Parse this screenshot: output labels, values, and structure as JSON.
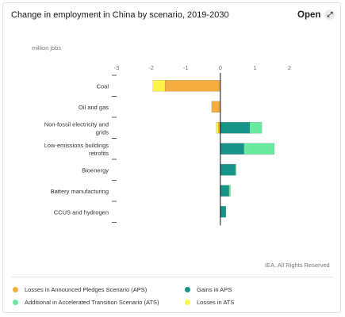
{
  "header": {
    "title": "Change in employment in China by scenario, 2019-2030",
    "open_label": "Open",
    "open_icon": "expand-arrow-icon"
  },
  "unit_label": "million jobs",
  "footer": {
    "rights": "IEA. All Rights Reserved"
  },
  "colors": {
    "losses_aps": "#f5ad3f",
    "gains_aps": "#169487",
    "additional_ats": "#6ae9a0",
    "losses_ats": "#fff347"
  },
  "chart_data": {
    "type": "bar",
    "orientation": "horizontal",
    "stacked": true,
    "title": "Change in employment in China by scenario, 2019-2030",
    "xlabel": "million jobs",
    "xlim": [
      -3,
      2
    ],
    "xticks": [
      "-3",
      "-2",
      "-1",
      "0",
      "1",
      "2"
    ],
    "grid": false,
    "legend_position": "bottom",
    "categories": [
      "Coal",
      "Oil and gas",
      "Non-fossil electricity and grids",
      "Low-emissions buildings retrofits",
      "Bioenergy",
      "Battery manufacturing",
      "CCUS and hydrogen"
    ],
    "category_lines": [
      [
        "Coal"
      ],
      [
        "Oil and gas"
      ],
      [
        "Non-fossil electricity and",
        "grids"
      ],
      [
        "Low-emissions buildings",
        "retrofits"
      ],
      [
        "Bioenergy"
      ],
      [
        "Battery manufacturing"
      ],
      [
        "CCUS and hydrogen"
      ]
    ],
    "series": [
      {
        "name": "Losses in Announced Pledges Scenario (APS)",
        "color": "#f5ad3f",
        "values": [
          -1.6,
          -0.25,
          -0.05,
          0,
          0,
          0,
          0
        ]
      },
      {
        "name": "Gains in APS",
        "color": "#169487",
        "values": [
          0,
          0,
          0.85,
          0.68,
          0.43,
          0.25,
          0.16
        ]
      },
      {
        "name": "Additional in Accelerated Transition Scenario (ATS)",
        "color": "#6ae9a0",
        "values": [
          0,
          0,
          0.35,
          0.88,
          0.03,
          0.04,
          0
        ]
      },
      {
        "name": "Losses in ATS",
        "color": "#fff347",
        "values": [
          -0.35,
          0,
          -0.07,
          0,
          0,
          0,
          0
        ]
      }
    ]
  },
  "legend": [
    {
      "label": "Losses in Announced Pledges Scenario (APS)",
      "color": "#f5ad3f"
    },
    {
      "label": "Gains in APS",
      "color": "#169487"
    },
    {
      "label": "Additional in Accelerated Transition Scenario (ATS)",
      "color": "#6ae9a0"
    },
    {
      "label": "Losses in ATS",
      "color": "#fff347"
    }
  ]
}
